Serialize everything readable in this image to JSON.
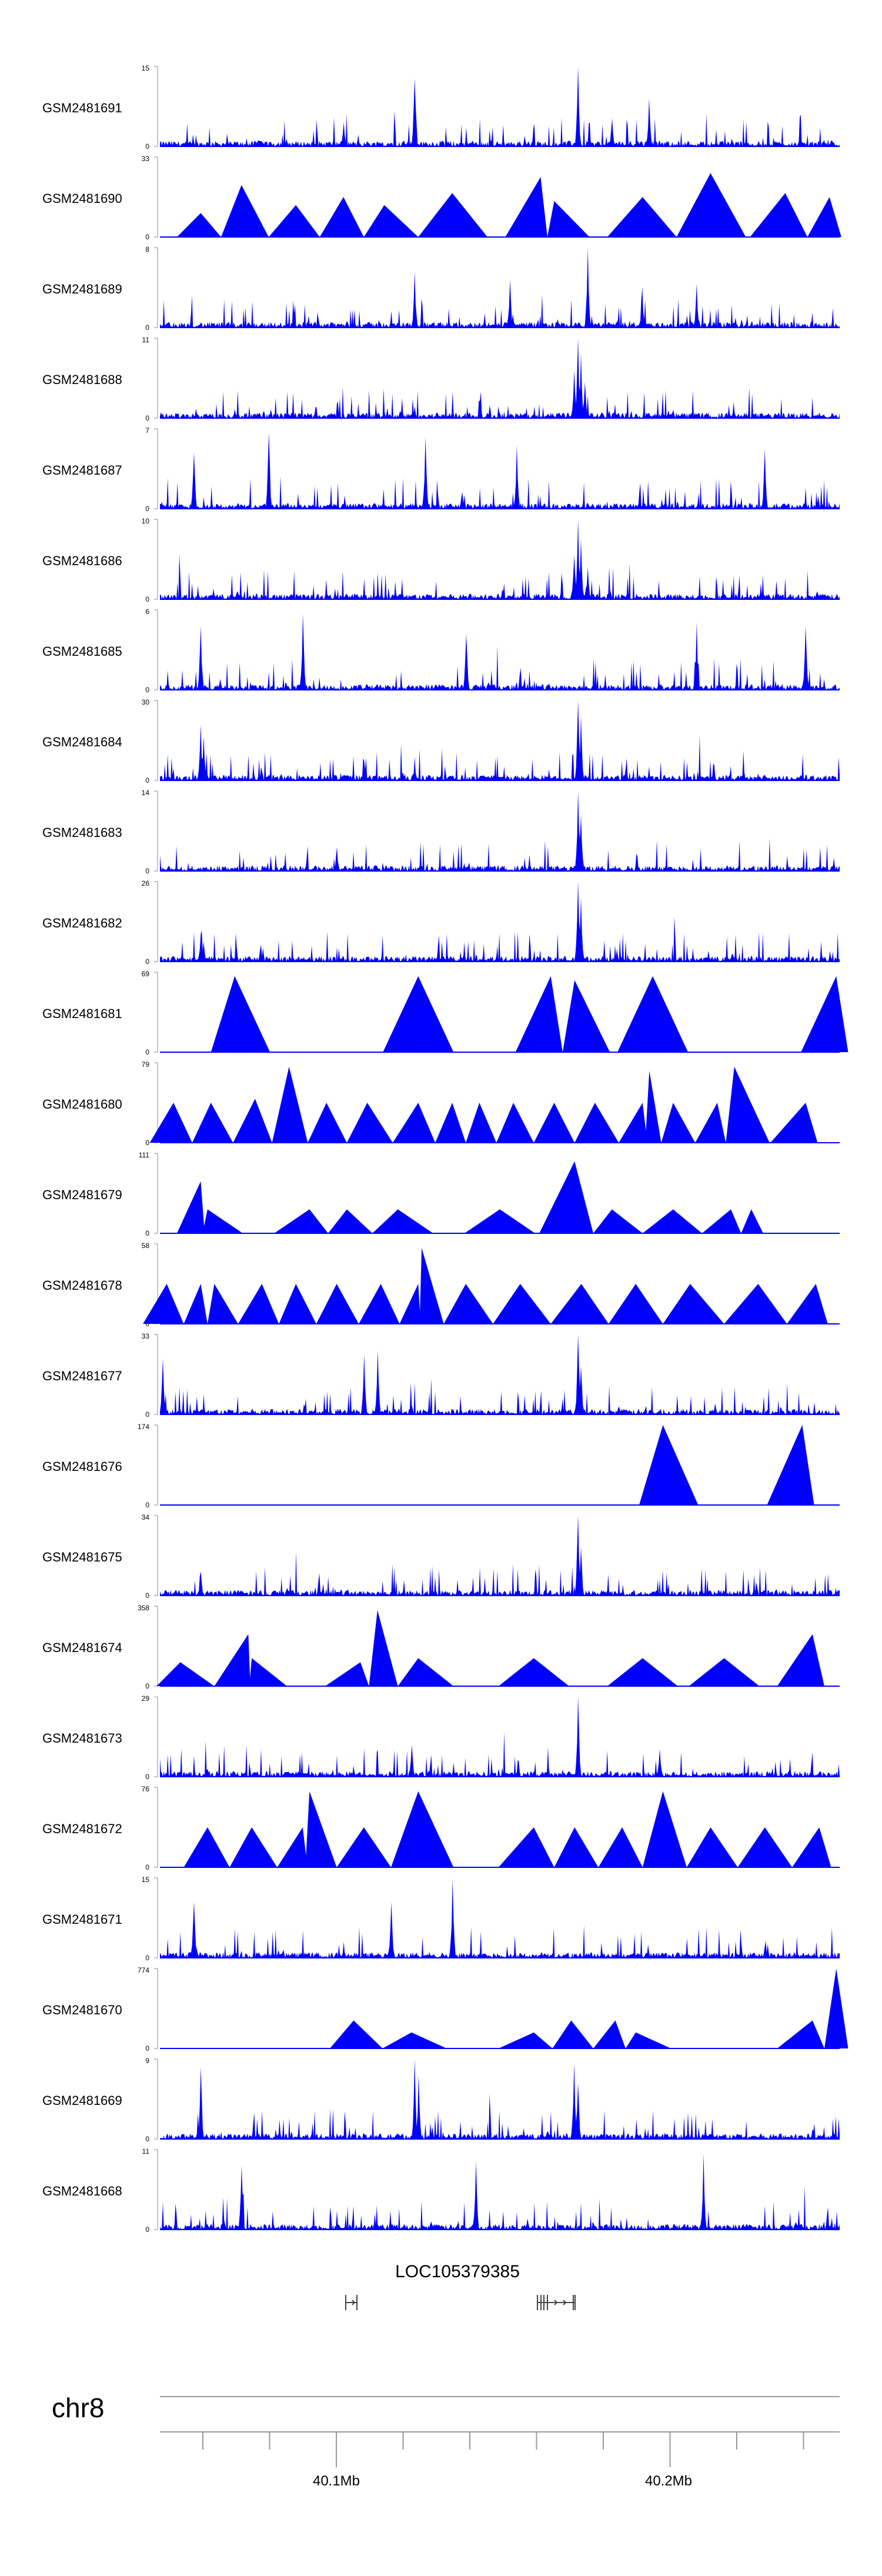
{
  "chart_data": {
    "type": "area",
    "color": "#0000FF",
    "gene": {
      "name": "LOC105379385"
    },
    "chromosome": "chr8",
    "x_ticks": [
      "40.1Mb",
      "40.2Mb"
    ],
    "tracks": [
      {
        "name": "GSM2481691",
        "ymax": "15",
        "ymin": "0",
        "style": "noisy",
        "peaks": [
          [
            0.375,
            0.85
          ],
          [
            0.615,
            1.0
          ],
          [
            0.72,
            0.6
          ],
          [
            0.665,
            0.35
          ],
          [
            0.27,
            0.3
          ]
        ]
      },
      {
        "name": "GSM2481690",
        "ymax": "33",
        "ymin": "0",
        "style": "tri",
        "peaks": [
          [
            0.06,
            0.3
          ],
          [
            0.12,
            0.65
          ],
          [
            0.2,
            0.4
          ],
          [
            0.27,
            0.5
          ],
          [
            0.33,
            0.4
          ],
          [
            0.43,
            0.55
          ],
          [
            0.56,
            0.75
          ],
          [
            0.58,
            0.45
          ],
          [
            0.71,
            0.5
          ],
          [
            0.81,
            0.8
          ],
          [
            0.92,
            0.55
          ],
          [
            0.985,
            0.5
          ]
        ]
      },
      {
        "name": "GSM2481689",
        "ymax": "8",
        "ymin": "0",
        "style": "noisy",
        "peaks": [
          [
            0.63,
            1.0
          ],
          [
            0.515,
            0.6
          ],
          [
            0.375,
            0.7
          ],
          [
            0.79,
            0.55
          ],
          [
            0.71,
            0.5
          ]
        ]
      },
      {
        "name": "GSM2481688",
        "ymax": "11",
        "ymin": "0",
        "style": "noisy",
        "peaks": [
          [
            0.615,
            1.0
          ],
          [
            0.62,
            0.8
          ],
          [
            0.61,
            0.6
          ],
          [
            0.625,
            0.45
          ]
        ]
      },
      {
        "name": "GSM2481687",
        "ymax": "7",
        "ymin": "0",
        "style": "noisy",
        "peaks": [
          [
            0.16,
            0.95
          ],
          [
            0.39,
            0.9
          ],
          [
            0.525,
            0.8
          ],
          [
            0.89,
            0.75
          ],
          [
            0.05,
            0.7
          ]
        ]
      },
      {
        "name": "GSM2481686",
        "ymax": "10",
        "ymin": "0",
        "style": "noisy",
        "peaks": [
          [
            0.615,
            1.0
          ],
          [
            0.62,
            0.75
          ],
          [
            0.61,
            0.55
          ],
          [
            0.63,
            0.4
          ]
        ]
      },
      {
        "name": "GSM2481685",
        "ymax": "6",
        "ymin": "0",
        "style": "noisy",
        "peaks": [
          [
            0.21,
            0.95
          ],
          [
            0.06,
            0.8
          ],
          [
            0.79,
            0.85
          ],
          [
            0.95,
            0.8
          ],
          [
            0.45,
            0.7
          ]
        ]
      },
      {
        "name": "GSM2481684",
        "ymax": "30",
        "ymin": "0",
        "style": "noisy",
        "peaks": [
          [
            0.06,
            0.7
          ],
          [
            0.065,
            0.55
          ],
          [
            0.615,
            1.0
          ],
          [
            0.62,
            0.8
          ],
          [
            0.3,
            0.25
          ],
          [
            0.375,
            0.2
          ]
        ]
      },
      {
        "name": "GSM2481683",
        "ymax": "14",
        "ymin": "0",
        "style": "noisy",
        "peaks": [
          [
            0.615,
            1.0
          ],
          [
            0.62,
            0.7
          ],
          [
            0.26,
            0.3
          ]
        ]
      },
      {
        "name": "GSM2481682",
        "ymax": "26",
        "ymin": "0",
        "style": "noisy",
        "peaks": [
          [
            0.615,
            1.0
          ],
          [
            0.62,
            0.8
          ],
          [
            0.06,
            0.35
          ],
          [
            0.065,
            0.25
          ]
        ]
      },
      {
        "name": "GSM2481681",
        "ymax": "69",
        "ymin": "0",
        "style": "tri",
        "peaks": [
          [
            0.11,
            0.95
          ],
          [
            0.38,
            0.95
          ],
          [
            0.575,
            0.95
          ],
          [
            0.61,
            0.9
          ],
          [
            0.725,
            0.95
          ],
          [
            0.995,
            0.95
          ]
        ]
      },
      {
        "name": "GSM2481680",
        "ymax": "79",
        "ymin": "0",
        "style": "tri",
        "peaks": [
          [
            0.02,
            0.5
          ],
          [
            0.075,
            0.5
          ],
          [
            0.14,
            0.55
          ],
          [
            0.19,
            0.95
          ],
          [
            0.245,
            0.5
          ],
          [
            0.305,
            0.5
          ],
          [
            0.38,
            0.5
          ],
          [
            0.43,
            0.5
          ],
          [
            0.47,
            0.5
          ],
          [
            0.52,
            0.5
          ],
          [
            0.58,
            0.5
          ],
          [
            0.64,
            0.5
          ],
          [
            0.71,
            0.5
          ],
          [
            0.72,
            0.9
          ],
          [
            0.755,
            0.5
          ],
          [
            0.82,
            0.5
          ],
          [
            0.845,
            0.95
          ],
          [
            0.95,
            0.5
          ]
        ]
      },
      {
        "name": "GSM2481679",
        "ymax": "111",
        "ymin": "0",
        "style": "tri",
        "peaks": [
          [
            0.06,
            0.65
          ],
          [
            0.07,
            0.3
          ],
          [
            0.22,
            0.3
          ],
          [
            0.275,
            0.3
          ],
          [
            0.35,
            0.3
          ],
          [
            0.5,
            0.3
          ],
          [
            0.61,
            0.9
          ],
          [
            0.665,
            0.3
          ],
          [
            0.755,
            0.3
          ],
          [
            0.84,
            0.3
          ],
          [
            0.87,
            0.3
          ]
        ]
      },
      {
        "name": "GSM2481678",
        "ymax": "58",
        "ymin": "0",
        "style": "tri",
        "peaks": [
          [
            0.01,
            0.5
          ],
          [
            0.06,
            0.5
          ],
          [
            0.08,
            0.5
          ],
          [
            0.15,
            0.5
          ],
          [
            0.2,
            0.5
          ],
          [
            0.26,
            0.5
          ],
          [
            0.325,
            0.5
          ],
          [
            0.38,
            0.5
          ],
          [
            0.385,
            0.95
          ],
          [
            0.45,
            0.5
          ],
          [
            0.53,
            0.5
          ],
          [
            0.62,
            0.5
          ],
          [
            0.7,
            0.5
          ],
          [
            0.78,
            0.5
          ],
          [
            0.88,
            0.5
          ],
          [
            0.965,
            0.5
          ]
        ]
      },
      {
        "name": "GSM2481677",
        "ymax": "33",
        "ymin": "0",
        "style": "noisy",
        "peaks": [
          [
            0.005,
            0.7
          ],
          [
            0.3,
            0.75
          ],
          [
            0.32,
            0.8
          ],
          [
            0.615,
            1.0
          ],
          [
            0.62,
            0.6
          ]
        ]
      },
      {
        "name": "GSM2481676",
        "ymax": "174",
        "ymin": "0",
        "style": "tri",
        "peaks": [
          [
            0.74,
            1.0
          ],
          [
            0.945,
            1.0
          ]
        ]
      },
      {
        "name": "GSM2481675",
        "ymax": "34",
        "ymin": "0",
        "style": "noisy",
        "peaks": [
          [
            0.615,
            1.0
          ],
          [
            0.62,
            0.6
          ],
          [
            0.06,
            0.3
          ]
        ]
      },
      {
        "name": "GSM2481674",
        "ymax": "358",
        "ymin": "0",
        "style": "tri",
        "peaks": [
          [
            0.03,
            0.3
          ],
          [
            0.13,
            0.65
          ],
          [
            0.135,
            0.35
          ],
          [
            0.295,
            0.3
          ],
          [
            0.32,
            0.95
          ],
          [
            0.38,
            0.35
          ],
          [
            0.55,
            0.35
          ],
          [
            0.71,
            0.35
          ],
          [
            0.83,
            0.35
          ],
          [
            0.96,
            0.65
          ]
        ]
      },
      {
        "name": "GSM2481673",
        "ymax": "29",
        "ymin": "0",
        "style": "noisy",
        "peaks": [
          [
            0.615,
            1.0
          ],
          [
            0.735,
            0.35
          ],
          [
            0.37,
            0.4
          ]
        ]
      },
      {
        "name": "GSM2481672",
        "ymax": "76",
        "ymin": "0",
        "style": "tri",
        "peaks": [
          [
            0.07,
            0.5
          ],
          [
            0.135,
            0.5
          ],
          [
            0.21,
            0.5
          ],
          [
            0.22,
            0.95
          ],
          [
            0.3,
            0.5
          ],
          [
            0.38,
            0.95
          ],
          [
            0.55,
            0.5
          ],
          [
            0.61,
            0.5
          ],
          [
            0.68,
            0.5
          ],
          [
            0.74,
            0.95
          ],
          [
            0.81,
            0.5
          ],
          [
            0.89,
            0.5
          ],
          [
            0.97,
            0.5
          ]
        ]
      },
      {
        "name": "GSM2481671",
        "ymax": "15",
        "ymin": "0",
        "style": "noisy",
        "peaks": [
          [
            0.43,
            1.0
          ],
          [
            0.34,
            0.7
          ],
          [
            0.05,
            0.7
          ]
        ]
      },
      {
        "name": "GSM2481670",
        "ymax": "774",
        "ymin": "0",
        "style": "tri",
        "peaks": [
          [
            0.285,
            0.35
          ],
          [
            0.37,
            0.2
          ],
          [
            0.55,
            0.2
          ],
          [
            0.605,
            0.35
          ],
          [
            0.67,
            0.35
          ],
          [
            0.7,
            0.2
          ],
          [
            0.96,
            0.35
          ],
          [
            0.995,
            1.0
          ]
        ]
      },
      {
        "name": "GSM2481669",
        "ymax": "9",
        "ymin": "0",
        "style": "noisy",
        "peaks": [
          [
            0.375,
            1.0
          ],
          [
            0.38,
            0.8
          ],
          [
            0.06,
            0.9
          ],
          [
            0.61,
            0.95
          ],
          [
            0.615,
            0.7
          ]
        ]
      },
      {
        "name": "GSM2481668",
        "ymax": "11",
        "ymin": "0",
        "style": "noisy",
        "peaks": [
          [
            0.8,
            0.95
          ],
          [
            0.12,
            0.8
          ],
          [
            0.465,
            0.85
          ]
        ]
      }
    ]
  }
}
